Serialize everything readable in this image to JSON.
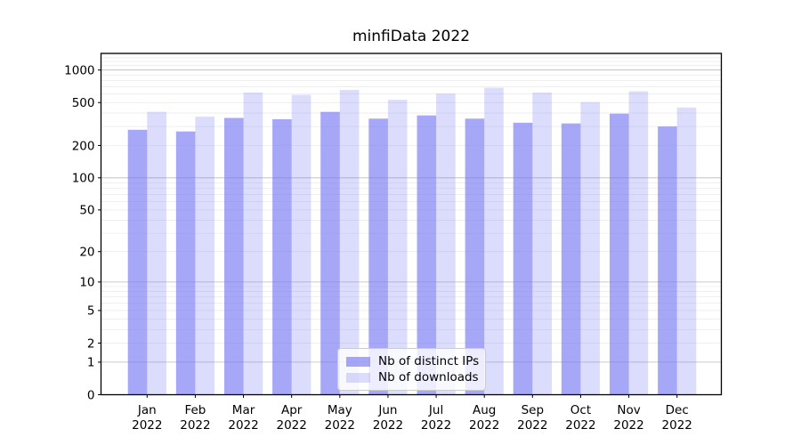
{
  "chart_data": {
    "type": "bar",
    "title": "minfiData 2022",
    "x_year": "2022",
    "categories": [
      "Jan",
      "Feb",
      "Mar",
      "Apr",
      "May",
      "Jun",
      "Jul",
      "Aug",
      "Sep",
      "Oct",
      "Nov",
      "Dec"
    ],
    "series": [
      {
        "name": "Nb of distinct IPs",
        "color": "#7878F5A6",
        "values": [
          280,
          270,
          360,
          350,
          410,
          355,
          380,
          355,
          325,
          320,
          395,
          300
        ]
      },
      {
        "name": "Nb of downloads",
        "color": "#7878F542",
        "values": [
          410,
          370,
          620,
          590,
          655,
          530,
          605,
          685,
          620,
          505,
          635,
          450
        ]
      }
    ],
    "y_scale": "log10(value+1)",
    "y_ticks": [
      0,
      1,
      2,
      5,
      10,
      20,
      50,
      100,
      200,
      500,
      1000
    ],
    "ylim": [
      0,
      1425
    ],
    "grid": "both",
    "legend_position": "lower center"
  }
}
